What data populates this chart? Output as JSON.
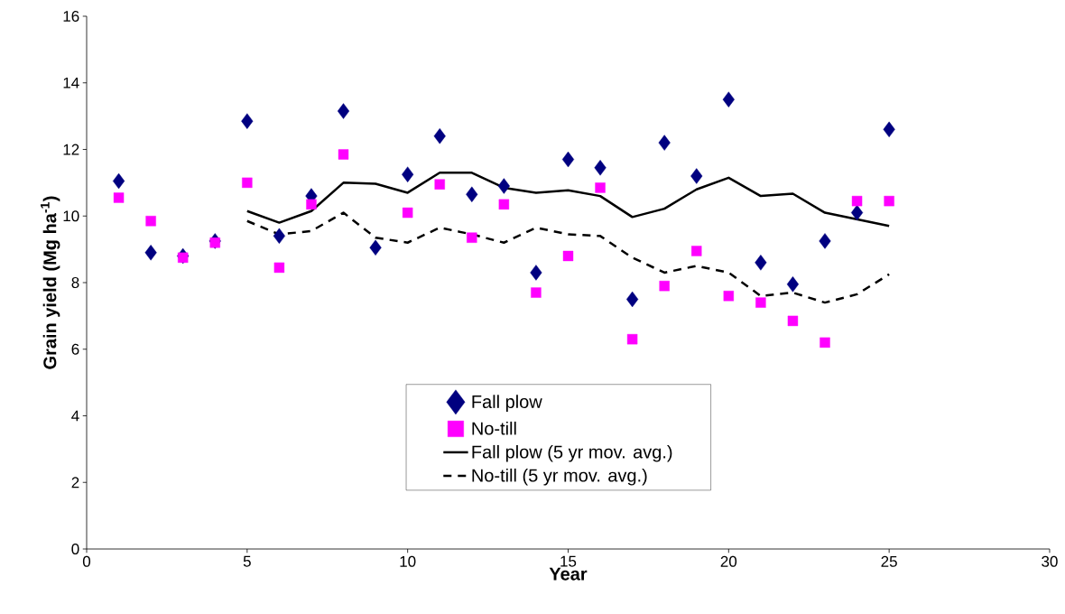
{
  "chart_data": {
    "type": "scatter",
    "xlabel": "Year",
    "ylabel": "Grain yield (Mg ha$^{-1}$)",
    "xlim": [
      0,
      30
    ],
    "ylim": [
      0,
      16
    ],
    "xticks": [
      0,
      5,
      10,
      15,
      20,
      25,
      30
    ],
    "yticks": [
      0,
      2,
      4,
      6,
      8,
      10,
      12,
      14,
      16
    ],
    "legend": "bottom",
    "x": [
      1,
      2,
      3,
      4,
      5,
      6,
      7,
      8,
      9,
      10,
      11,
      12,
      13,
      14,
      15,
      16,
      17,
      18,
      19,
      20,
      21,
      22,
      23,
      24,
      25
    ],
    "series": [
      {
        "name": "Fall plow",
        "marker": "diamond",
        "color": "#000080",
        "values": [
          11.05,
          8.9,
          8.8,
          9.25,
          12.85,
          9.4,
          10.6,
          13.15,
          9.05,
          11.25,
          12.4,
          10.65,
          10.9,
          8.3,
          11.7,
          11.45,
          7.5,
          12.2,
          11.2,
          13.5,
          8.6,
          7.95,
          9.25,
          10.1,
          12.6
        ]
      },
      {
        "name": "No-till",
        "marker": "square",
        "color": "#ff00ff",
        "values": [
          10.55,
          9.85,
          8.75,
          9.2,
          11.0,
          8.45,
          10.35,
          11.85,
          null,
          10.1,
          10.95,
          9.35,
          10.35,
          7.7,
          8.8,
          10.85,
          6.3,
          7.9,
          8.95,
          7.6,
          7.4,
          6.85,
          6.2,
          10.45,
          10.45
        ]
      },
      {
        "name": "Fall plow (5 yr mov. avg.)",
        "type": "line",
        "line_style": "solid",
        "color": "#000000",
        "x": [
          5,
          6,
          7,
          8,
          9,
          10,
          11,
          12,
          13,
          14,
          15,
          16,
          17,
          18,
          19,
          20,
          21,
          22,
          23,
          24,
          25
        ],
        "values": [
          10.15,
          9.8,
          10.15,
          11.0,
          10.97,
          10.7,
          11.3,
          11.3,
          10.85,
          10.7,
          10.77,
          10.6,
          9.97,
          10.22,
          10.8,
          11.15,
          10.6,
          10.67,
          10.1,
          9.9,
          9.7
        ]
      },
      {
        "name": "No-till (5 yr mov. avg.)",
        "type": "line",
        "line_style": "dashed",
        "color": "#000000",
        "x": [
          5,
          6,
          7,
          8,
          9,
          10,
          11,
          12,
          13,
          14,
          15,
          16,
          17,
          18,
          19,
          20,
          21,
          22,
          23,
          24,
          25
        ],
        "values": [
          9.85,
          9.45,
          9.55,
          10.1,
          9.35,
          9.2,
          9.65,
          9.45,
          9.2,
          9.65,
          9.45,
          9.4,
          8.75,
          8.3,
          8.5,
          8.3,
          7.6,
          7.7,
          7.4,
          7.65,
          8.25
        ]
      }
    ]
  }
}
